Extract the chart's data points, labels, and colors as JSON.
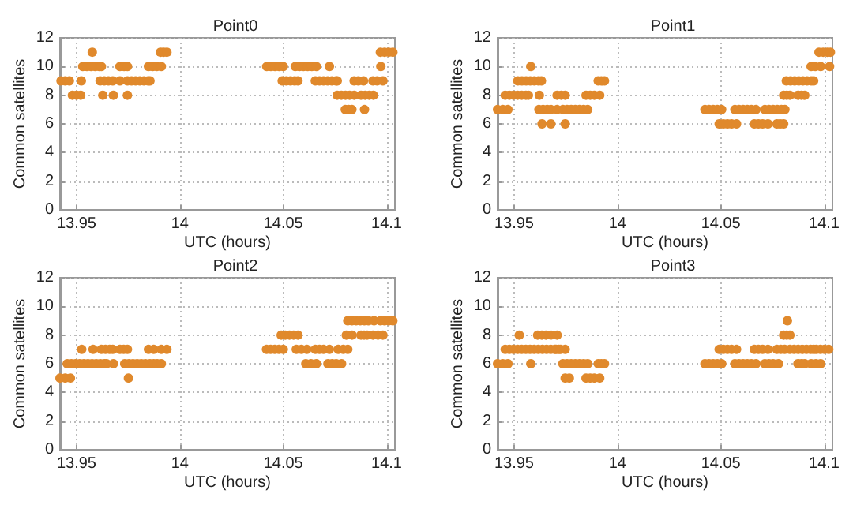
{
  "chart_data": [
    {
      "type": "scatter",
      "title": "Point0",
      "xlabel": "UTC (hours)",
      "ylabel": "Common satellites",
      "color": "#e0892c",
      "marker": "circle",
      "grid": true,
      "xlim": [
        13.942,
        14.104
      ],
      "ylim": [
        0,
        12
      ],
      "xticks": [
        13.95,
        14,
        14.05,
        14.1
      ],
      "yticks": [
        0,
        2,
        4,
        6,
        8,
        10,
        12
      ],
      "x": [
        13.9425,
        13.9445,
        13.9465,
        13.948,
        13.95,
        13.952,
        13.9523,
        13.953,
        13.955,
        13.957,
        13.959,
        13.961,
        13.962,
        13.9576,
        13.9614,
        13.9634,
        13.9654,
        13.9675,
        13.9627,
        13.9678,
        13.971,
        13.971,
        13.973,
        13.9746,
        13.9746,
        13.9746,
        13.9766,
        13.9786,
        13.9806,
        13.9826,
        13.9846,
        13.9855,
        13.9848,
        13.9868,
        13.9888,
        13.991,
        13.9906,
        13.9921,
        13.9937,
        14.042,
        14.044,
        14.046,
        14.048,
        14.05,
        14.0495,
        14.0515,
        14.0535,
        14.0555,
        14.0571,
        14.0558,
        14.0578,
        14.0598,
        14.0618,
        14.0638,
        14.066,
        14.0655,
        14.0675,
        14.0695,
        14.0715,
        14.0735,
        14.0755,
        14.0761,
        14.0723,
        14.0761,
        14.0781,
        14.0801,
        14.0821,
        14.0843,
        14.08,
        14.0816,
        14.0832,
        14.0843,
        14.0863,
        14.0888,
        14.0876,
        14.0896,
        14.0916,
        14.0936,
        14.0893,
        14.0934,
        14.0954,
        14.0982,
        14.0972,
        14.097,
        14.099,
        14.101,
        14.103
      ],
      "values": [
        9,
        9,
        9,
        8,
        8,
        8,
        9,
        10,
        10,
        10,
        10,
        10,
        10,
        11,
        9,
        9,
        9,
        9,
        8,
        8,
        9,
        10,
        10,
        10,
        8,
        9,
        9,
        9,
        9,
        9,
        9,
        9,
        10,
        10,
        10,
        10,
        11,
        11,
        11,
        10,
        10,
        10,
        10,
        10,
        9,
        9,
        9,
        9,
        9,
        10,
        10,
        10,
        10,
        10,
        10,
        9,
        9,
        9,
        9,
        9,
        9,
        9,
        10,
        8,
        8,
        8,
        8,
        8,
        7,
        7,
        7,
        9,
        9,
        9,
        8,
        8,
        8,
        8,
        7,
        9,
        9,
        9,
        10,
        11,
        11,
        11,
        11
      ]
    },
    {
      "type": "scatter",
      "title": "Point1",
      "xlabel": "UTC (hours)",
      "ylabel": "Common satellites",
      "color": "#e0892c",
      "marker": "circle",
      "grid": true,
      "xlim": [
        13.942,
        14.104
      ],
      "ylim": [
        0,
        12
      ],
      "xticks": [
        13.95,
        14,
        14.05,
        14.1
      ],
      "yticks": [
        0,
        2,
        4,
        6,
        8,
        10,
        12
      ],
      "x": [
        13.942,
        13.9445,
        13.947,
        13.9457,
        13.9477,
        13.9497,
        13.9517,
        13.9537,
        13.9557,
        13.9569,
        13.9518,
        13.9538,
        13.9558,
        13.9578,
        13.9598,
        13.9618,
        13.9632,
        13.9581,
        13.9622,
        13.962,
        13.964,
        13.966,
        13.9678,
        13.9635,
        13.9678,
        13.9708,
        13.9708,
        13.9728,
        13.9747,
        13.9736,
        13.9756,
        13.9776,
        13.9796,
        13.9816,
        13.9836,
        13.9856,
        13.9747,
        13.9848,
        13.9868,
        13.9888,
        13.9914,
        13.9907,
        13.9922,
        13.9937,
        14.0423,
        14.0443,
        14.0463,
        14.0483,
        14.0504,
        14.0492,
        14.0512,
        14.0532,
        14.0552,
        14.0576,
        14.0568,
        14.0588,
        14.0608,
        14.0628,
        14.0648,
        14.067,
        14.0662,
        14.0682,
        14.0702,
        14.0728,
        14.0713,
        14.0733,
        14.0753,
        14.0773,
        14.0793,
        14.081,
        14.0771,
        14.0787,
        14.0804,
        14.0804,
        14.0819,
        14.0834,
        14.0817,
        14.0837,
        14.0857,
        14.0877,
        14.0897,
        14.0917,
        14.0937,
        14.0949,
        14.0873,
        14.089,
        14.0906,
        14.0937,
        14.0957,
        14.0983,
        14.0975,
        14.0995,
        14.1015,
        14.103,
        14.1026
      ],
      "values": [
        7,
        7,
        7,
        8,
        8,
        8,
        8,
        8,
        8,
        8,
        9,
        9,
        9,
        9,
        9,
        9,
        9,
        10,
        8,
        7,
        7,
        7,
        7,
        6,
        6,
        7,
        8,
        8,
        8,
        7,
        7,
        7,
        7,
        7,
        7,
        7,
        6,
        8,
        8,
        8,
        8,
        9,
        9,
        9,
        7,
        7,
        7,
        7,
        7,
        6,
        6,
        6,
        6,
        6,
        7,
        7,
        7,
        7,
        7,
        7,
        6,
        6,
        6,
        6,
        7,
        7,
        7,
        7,
        7,
        7,
        6,
        6,
        6,
        8,
        8,
        8,
        9,
        9,
        9,
        9,
        9,
        9,
        9,
        9,
        8,
        8,
        8,
        10,
        10,
        10,
        11,
        11,
        11,
        11,
        10
      ]
    },
    {
      "type": "scatter",
      "title": "Point2",
      "xlabel": "UTC (hours)",
      "ylabel": "Common satellites",
      "color": "#e0892c",
      "marker": "circle",
      "grid": true,
      "xlim": [
        13.942,
        14.104
      ],
      "ylim": [
        0,
        12
      ],
      "xticks": [
        13.95,
        14,
        14.05,
        14.1
      ],
      "yticks": [
        0,
        2,
        4,
        6,
        8,
        10,
        12
      ],
      "x": [
        13.942,
        13.9445,
        13.947,
        13.9455,
        13.9475,
        13.9495,
        13.9515,
        13.9535,
        13.9555,
        13.9575,
        13.9595,
        13.9615,
        13.9635,
        13.9645,
        13.9525,
        13.958,
        13.962,
        13.964,
        13.966,
        13.9675,
        13.9678,
        13.971,
        13.9728,
        13.9746,
        13.9733,
        13.9753,
        13.9773,
        13.9793,
        13.9813,
        13.9833,
        13.9855,
        13.9751,
        13.9848,
        13.9873,
        13.9873,
        13.989,
        13.991,
        13.991,
        13.9937,
        14.0419,
        14.0439,
        14.0459,
        14.0479,
        14.05,
        14.049,
        14.051,
        14.053,
        14.055,
        14.0571,
        14.0563,
        14.0588,
        14.0614,
        14.0609,
        14.0634,
        14.066,
        14.0655,
        14.0675,
        14.0695,
        14.0723,
        14.0716,
        14.0736,
        14.0756,
        14.0782,
        14.0766,
        14.079,
        14.0812,
        14.0805,
        14.0833,
        14.0812,
        14.0832,
        14.0852,
        14.0872,
        14.0892,
        14.0912,
        14.0939,
        14.0876,
        14.0891,
        14.0906,
        14.0934,
        14.0958,
        14.0982,
        14.097,
        14.099,
        14.101,
        14.103
      ],
      "values": [
        5,
        5,
        5,
        6,
        6,
        6,
        6,
        6,
        6,
        6,
        6,
        6,
        6,
        6,
        7,
        7,
        7,
        7,
        7,
        7,
        6,
        7,
        7,
        7,
        6,
        6,
        6,
        6,
        6,
        6,
        6,
        5,
        7,
        7,
        6,
        6,
        6,
        7,
        7,
        7,
        7,
        7,
        7,
        7,
        8,
        8,
        8,
        8,
        8,
        7,
        7,
        7,
        6,
        6,
        6,
        7,
        7,
        7,
        7,
        6,
        6,
        6,
        6,
        7,
        7,
        7,
        8,
        8,
        9,
        9,
        9,
        9,
        9,
        9,
        9,
        8,
        8,
        8,
        8,
        8,
        8,
        9,
        9,
        9,
        9
      ]
    },
    {
      "type": "scatter",
      "title": "Point3",
      "xlabel": "UTC (hours)",
      "ylabel": "Common satellites",
      "color": "#e0892c",
      "marker": "circle",
      "grid": true,
      "xlim": [
        13.942,
        14.104
      ],
      "ylim": [
        0,
        12
      ],
      "xticks": [
        13.95,
        14,
        14.05,
        14.1
      ],
      "yticks": [
        0,
        2,
        4,
        6,
        8,
        10,
        12
      ],
      "x": [
        13.942,
        13.9445,
        13.947,
        13.9457,
        13.9477,
        13.9497,
        13.9517,
        13.9537,
        13.9557,
        13.9577,
        13.9597,
        13.9617,
        13.9637,
        13.9657,
        13.9677,
        13.9697,
        13.9716,
        13.9525,
        13.9581,
        13.9614,
        13.9634,
        13.9654,
        13.9678,
        13.9708,
        13.9703,
        13.9725,
        13.9747,
        13.9736,
        13.9756,
        13.9776,
        13.9796,
        13.9816,
        13.9836,
        13.9856,
        13.9747,
        13.9767,
        13.9848,
        13.9868,
        13.9888,
        13.9914,
        13.9907,
        13.9922,
        13.9937,
        14.0423,
        14.0443,
        14.0463,
        14.0483,
        14.0504,
        14.0492,
        14.0512,
        14.0532,
        14.0552,
        14.0576,
        14.0568,
        14.0588,
        14.0608,
        14.0628,
        14.0648,
        14.067,
        14.0662,
        14.0682,
        14.0702,
        14.0728,
        14.0713,
        14.0733,
        14.0753,
        14.0779,
        14.0771,
        14.079,
        14.0809,
        14.0804,
        14.0819,
        14.0834,
        14.0822,
        14.0834,
        14.0854,
        14.0874,
        14.0894,
        14.0914,
        14.0934,
        14.0949,
        14.0873,
        14.089,
        14.0906,
        14.0937,
        14.096,
        14.0983,
        14.0962,
        14.0982,
        14.1002,
        14.1022
      ],
      "values": [
        6,
        6,
        6,
        7,
        7,
        7,
        7,
        7,
        7,
        7,
        7,
        7,
        7,
        7,
        7,
        7,
        7,
        8,
        6,
        8,
        8,
        8,
        8,
        8,
        7,
        7,
        7,
        6,
        6,
        6,
        6,
        6,
        6,
        6,
        5,
        5,
        5,
        5,
        5,
        5,
        6,
        6,
        6,
        6,
        6,
        6,
        6,
        6,
        7,
        7,
        7,
        7,
        7,
        6,
        6,
        6,
        6,
        6,
        6,
        7,
        7,
        7,
        7,
        6,
        6,
        6,
        6,
        7,
        7,
        7,
        8,
        8,
        8,
        9,
        7,
        7,
        7,
        7,
        7,
        7,
        7,
        6,
        6,
        6,
        6,
        6,
        6,
        7,
        7,
        7,
        7
      ]
    }
  ]
}
